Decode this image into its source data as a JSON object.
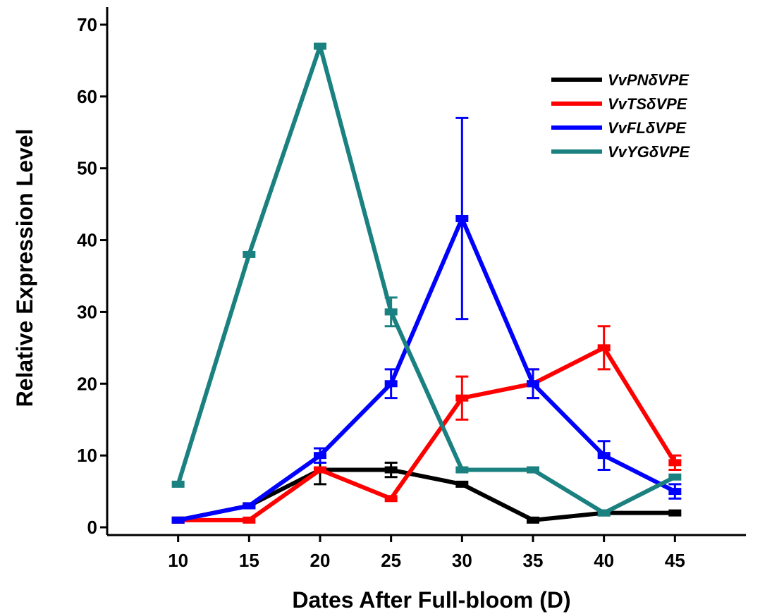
{
  "chart_data": {
    "type": "line",
    "title": "",
    "xlabel": "Dates After Full-bloom (D)",
    "ylabel": "Relative Expression Level",
    "x": [
      10,
      15,
      20,
      25,
      30,
      35,
      40,
      45
    ],
    "xlim": [
      5,
      50
    ],
    "ylim": [
      0,
      70
    ],
    "yticks": [
      0,
      10,
      20,
      30,
      40,
      50,
      60,
      70
    ],
    "grid": false,
    "legend_position": "top-right",
    "series": [
      {
        "name": "VvPNδVPE",
        "color": "#000000",
        "values": [
          1,
          3,
          8,
          8,
          6,
          1,
          2,
          2
        ],
        "errors": [
          0,
          0,
          2,
          1,
          0,
          0,
          0,
          0
        ]
      },
      {
        "name": "VvTSδVPE",
        "color": "#ff0000",
        "values": [
          1,
          1,
          8,
          4,
          18,
          20,
          25,
          9
        ],
        "errors": [
          0,
          0,
          0,
          0,
          3,
          2,
          3,
          1
        ]
      },
      {
        "name": "VvFLδVPE",
        "color": "#0000ff",
        "values": [
          1,
          3,
          10,
          20,
          43,
          20,
          10,
          5
        ],
        "errors": [
          0,
          0,
          1,
          2,
          14,
          2,
          2,
          1
        ]
      },
      {
        "name": "VvYGδVPE",
        "color": "#1a8080",
        "values": [
          6,
          38,
          67,
          30,
          8,
          8,
          2,
          7
        ],
        "errors": [
          0,
          0,
          0,
          2,
          0,
          0,
          0,
          0
        ]
      }
    ]
  }
}
